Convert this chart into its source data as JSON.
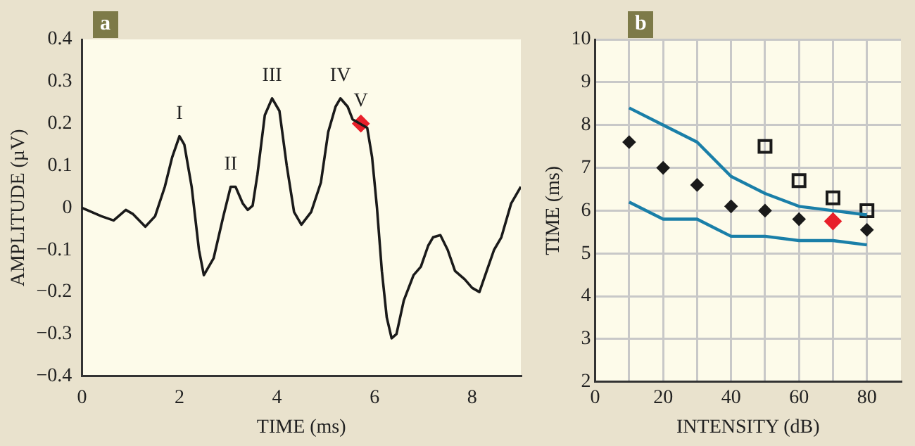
{
  "chart_data": [
    {
      "type": "line",
      "title": "a",
      "xlabel": "TIME (ms)",
      "ylabel": "AMPLITUDE (µV)",
      "xlim": [
        0,
        9
      ],
      "xticks": [
        0,
        2,
        4,
        6,
        8
      ],
      "ylim": [
        -0.4,
        0.4
      ],
      "yticks": [
        {
          "value": -0.4,
          "label": "−0.4"
        },
        {
          "value": -0.3,
          "label": "−0.3"
        },
        {
          "value": -0.2,
          "label": "−0.2"
        },
        {
          "value": -0.1,
          "label": "−0.1"
        },
        0,
        0.1,
        0.2,
        0.3,
        0.4
      ],
      "grid": false,
      "legend": false,
      "series": [
        {
          "type": "line",
          "color": "#1a1a1a",
          "marker": "none",
          "x": [
            0,
            0.2,
            0.4,
            0.65,
            0.9,
            1.05,
            1.3,
            1.5,
            1.7,
            1.85,
            2.0,
            2.1,
            2.25,
            2.4,
            2.5,
            2.7,
            2.9,
            3.05,
            3.15,
            3.3,
            3.4,
            3.5,
            3.6,
            3.75,
            3.9,
            4.05,
            4.2,
            4.35,
            4.5,
            4.7,
            4.9,
            5.05,
            5.2,
            5.3,
            5.45,
            5.55,
            5.7,
            5.85,
            5.95,
            6.05,
            6.15,
            6.25,
            6.35,
            6.45,
            6.6,
            6.8,
            6.95,
            7.1,
            7.2,
            7.35,
            7.5,
            7.65,
            7.85,
            8.0,
            8.15,
            8.3,
            8.45,
            8.6,
            8.8,
            9.0
          ],
          "values": [
            0,
            -0.01,
            -0.02,
            -0.03,
            -0.005,
            -0.015,
            -0.045,
            -0.02,
            0.05,
            0.12,
            0.17,
            0.15,
            0.05,
            -0.1,
            -0.16,
            -0.12,
            -0.02,
            0.05,
            0.05,
            0.01,
            -0.005,
            0.005,
            0.08,
            0.22,
            0.26,
            0.23,
            0.1,
            -0.01,
            -0.04,
            -0.01,
            0.06,
            0.18,
            0.24,
            0.26,
            0.24,
            0.21,
            0.2,
            0.19,
            0.12,
            0.0,
            -0.15,
            -0.26,
            -0.31,
            -0.3,
            -0.22,
            -0.16,
            -0.14,
            -0.09,
            -0.07,
            -0.065,
            -0.1,
            -0.15,
            -0.17,
            -0.19,
            -0.2,
            -0.15,
            -0.1,
            -0.07,
            0.01,
            0.05
          ]
        },
        {
          "type": "scatter",
          "color": "#e8202a",
          "marker": "diamond",
          "x": [
            5.72
          ],
          "values": [
            0.2
          ]
        }
      ],
      "annotations": [
        {
          "text": "I",
          "x": 2.0,
          "y": 0.17
        },
        {
          "text": "II",
          "x": 3.05,
          "y": 0.05
        },
        {
          "text": "III",
          "x": 3.9,
          "y": 0.26
        },
        {
          "text": "IV",
          "x": 5.3,
          "y": 0.26
        },
        {
          "text": "V",
          "x": 5.72,
          "y": 0.2
        }
      ]
    },
    {
      "type": "scatter",
      "title": "b",
      "xlabel": "INTENSITY (dB)",
      "ylabel": "TIME (ms)",
      "xlim": [
        0,
        90
      ],
      "xticks": [
        0,
        {
          "value": 10,
          "label": null
        },
        20,
        {
          "value": 30,
          "label": null
        },
        40,
        {
          "value": 50,
          "label": null
        },
        60,
        {
          "value": 70,
          "label": null
        },
        80
      ],
      "ylim": [
        2,
        10
      ],
      "yticks": [
        2,
        3,
        4,
        5,
        6,
        7,
        8,
        9,
        10
      ],
      "grid": true,
      "legend": false,
      "series": [
        {
          "type": "line",
          "color": "#1a7fa8",
          "marker": "none",
          "x": [
            10,
            20,
            30,
            40,
            50,
            60,
            70,
            80
          ],
          "values": [
            8.4,
            8.0,
            7.6,
            6.8,
            6.4,
            6.1,
            6.0,
            5.9
          ]
        },
        {
          "type": "line",
          "color": "#1a7fa8",
          "marker": "none",
          "x": [
            10,
            20,
            30,
            40,
            50,
            60,
            70,
            80
          ],
          "values": [
            6.2,
            5.8,
            5.8,
            5.4,
            5.4,
            5.3,
            5.3,
            5.2
          ]
        },
        {
          "type": "scatter",
          "color": "#1a1a1a",
          "marker": "diamond",
          "x": [
            10,
            20,
            30,
            40,
            50,
            60,
            80
          ],
          "values": [
            7.6,
            7.0,
            6.6,
            6.1,
            6.0,
            5.8,
            5.55
          ]
        },
        {
          "type": "scatter",
          "color": "#e8202a",
          "marker": "diamond",
          "x": [
            70
          ],
          "values": [
            5.75
          ]
        },
        {
          "type": "scatter",
          "color": "#1a1a1a",
          "marker": "square",
          "x": [
            50,
            60,
            70,
            80
          ],
          "values": [
            7.5,
            6.7,
            6.3,
            6.0
          ]
        }
      ]
    }
  ]
}
